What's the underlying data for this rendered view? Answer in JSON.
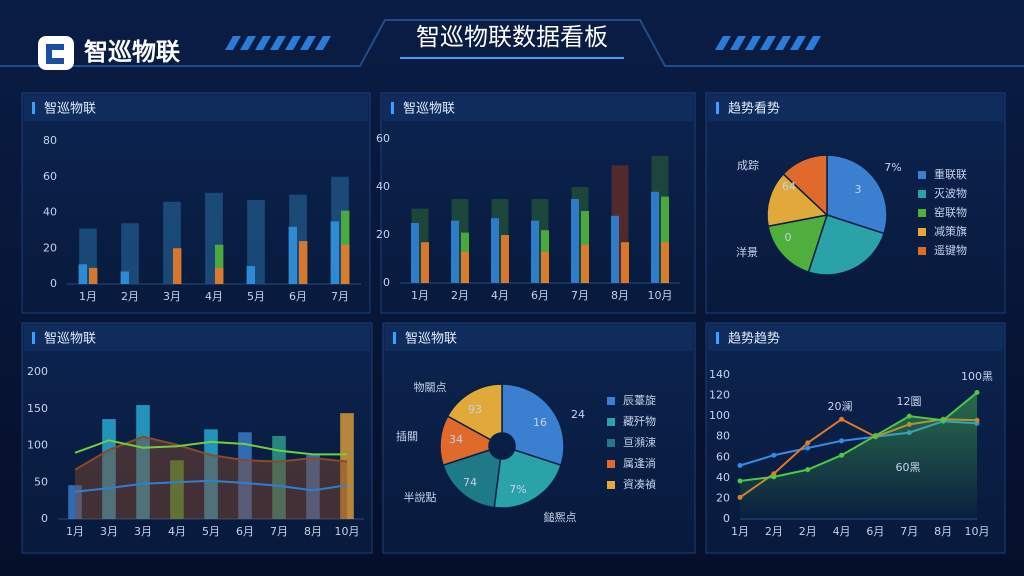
{
  "header": {
    "logo": "智巡物联",
    "title": "智巡物联数据看板"
  },
  "chart_data": [
    {
      "type": "bar",
      "title": "智巡物联",
      "categories": [
        "1月",
        "2月",
        "3月",
        "4月",
        "5月",
        "6月",
        "7月"
      ],
      "ylim": [
        0,
        80
      ],
      "yticks": [
        0,
        20,
        40,
        60,
        80
      ],
      "series": [
        {
          "color": "#1d4f7e",
          "values": [
            31,
            34,
            46,
            51,
            47,
            50,
            60
          ]
        },
        {
          "color": "#2f8fd8",
          "values": [
            11,
            7,
            0,
            0,
            10,
            32,
            35
          ]
        },
        {
          "color": "#e07a2c",
          "values": [
            9,
            0,
            20,
            9,
            0,
            24,
            22
          ]
        },
        {
          "color": "#4fae3c",
          "values": [
            0,
            0,
            0,
            22,
            0,
            0,
            41
          ]
        }
      ]
    },
    {
      "type": "bar",
      "title": "智巡物联",
      "categories": [
        "1月",
        "2月",
        "4月",
        "6月",
        "7月",
        "8月",
        "10月"
      ],
      "ylim": [
        0,
        60
      ],
      "yticks": [
        0,
        20,
        40,
        60
      ],
      "series": [
        {
          "color": "#1e4a3a",
          "colors": [
            "#1e4a3a",
            "#1e4a3a",
            "#1e4a3a",
            "#1e4a3a",
            "#1e4a3a",
            "#5a2a2a",
            "#1e4a3a"
          ],
          "values": [
            31,
            35,
            35,
            35,
            40,
            49,
            53
          ]
        },
        {
          "color": "#2f7fd0",
          "values": [
            25,
            26,
            27,
            26,
            35,
            28,
            38
          ]
        },
        {
          "color": "#e07a2c",
          "values": [
            17,
            13,
            20,
            13,
            16,
            17,
            17
          ]
        },
        {
          "color": "#4fae3c",
          "values": [
            0,
            21,
            0,
            22,
            30,
            0,
            36
          ]
        }
      ]
    },
    {
      "type": "pie",
      "title": "趋势看势",
      "categories": [
        "重联联",
        "灭波物",
        "窑联物",
        "减策旗",
        "遥键物"
      ],
      "values": [
        30,
        25,
        17,
        15,
        13
      ],
      "colors": [
        "#3a7fd0",
        "#2aa3a8",
        "#4fae3c",
        "#e0a93a",
        "#e06a2c"
      ],
      "annotations": [
        "7%",
        "3",
        "64",
        "0",
        "成踪",
        "洋景"
      ]
    },
    {
      "type": "combo",
      "title": "智巡物联",
      "categories": [
        "1月",
        "3月",
        "3月",
        "4月",
        "5月",
        "6月",
        "7月",
        "8月",
        "10月"
      ],
      "ylim": [
        0,
        200
      ],
      "yticks": [
        0,
        50,
        100,
        150,
        200
      ],
      "series": [
        {
          "type": "bar",
          "color": "#2ab0d8",
          "colors": [
            "#3a7fd0",
            "#2ab0d8",
            "#2ab0d8",
            "#4fae3c",
            "#2ab0d8",
            "#3a7fd0",
            "#2aa38f",
            "#3a7fd0",
            "#e0a03a"
          ],
          "values": [
            46,
            136,
            155,
            80,
            122,
            118,
            113,
            87,
            144
          ]
        },
        {
          "type": "area",
          "color": "#8a4a2a",
          "values": [
            67,
            94,
            112,
            101,
            87,
            80,
            78,
            83,
            78
          ]
        },
        {
          "type": "line",
          "color": "#6fcf3c",
          "values": [
            90,
            107,
            97,
            99,
            105,
            102,
            93,
            88,
            88
          ]
        },
        {
          "type": "line",
          "color": "#2f7fd0",
          "values": [
            37,
            42,
            48,
            50,
            52,
            49,
            45,
            39,
            46
          ]
        }
      ]
    },
    {
      "type": "pie",
      "title": "智巡物联",
      "donut": true,
      "categories": [
        "辰薹旋",
        "藏歼物",
        "亘瀕涑",
        "属逢淌",
        "資凑禎"
      ],
      "values": [
        30,
        22,
        18,
        13,
        17
      ],
      "colors": [
        "#3a7fd0",
        "#2aa3a8",
        "#1f7a88",
        "#e06a2c",
        "#e0a93a"
      ],
      "annotations": [
        "16",
        "7%",
        "74",
        "34",
        "93",
        "24",
        "物關点",
        "插關",
        "半說點",
        "鎚熈点"
      ]
    },
    {
      "type": "line",
      "title": "趋势趋势",
      "categories": [
        "1月",
        "2月",
        "2月",
        "4月",
        "6月",
        "7月",
        "8月",
        "10月"
      ],
      "ylim": [
        0,
        140
      ],
      "yticks": [
        0,
        20,
        40,
        60,
        80,
        100,
        120,
        140
      ],
      "series": [
        {
          "color": "#2f8fe0",
          "values": [
            52,
            62,
            69,
            76,
            80,
            84,
            95,
            93
          ]
        },
        {
          "color": "#e07a2c",
          "values": [
            21,
            44,
            74,
            97,
            80,
            92,
            97,
            96
          ]
        },
        {
          "color": "#4fc84a",
          "area": true,
          "values": [
            37,
            41,
            48,
            62,
            81,
            100,
            96,
            123
          ]
        }
      ],
      "annotations": [
        "20澜",
        "12圜",
        "100黑",
        "60黑"
      ]
    }
  ]
}
